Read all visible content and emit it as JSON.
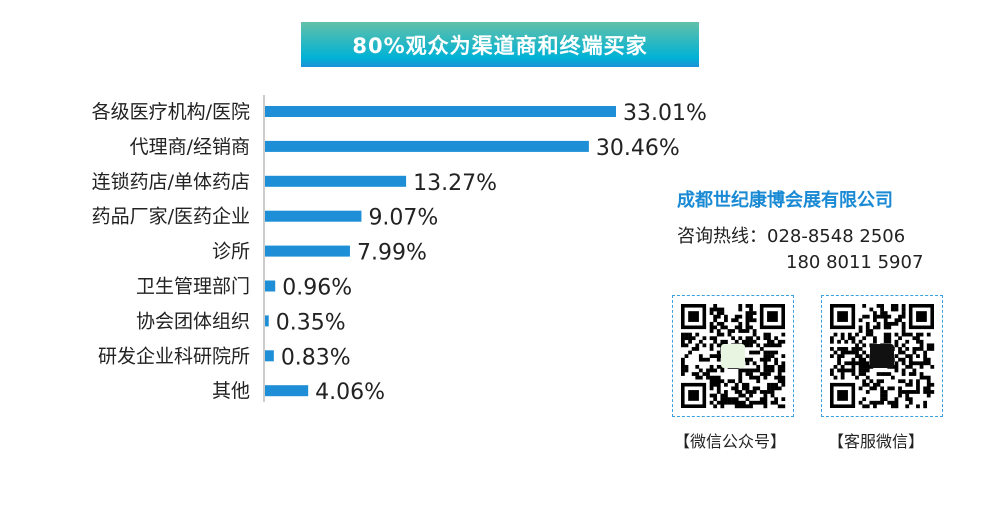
{
  "header": {
    "title": "80%观众为渠道商和终端买家"
  },
  "chart_data": {
    "type": "bar",
    "orientation": "horizontal",
    "categories": [
      "各级医疗机构/医院",
      "代理商/经销商",
      "连锁药店/单体药店",
      "药品厂家/医药企业",
      "诊所",
      "卫生管理部门",
      "协会团体组织",
      "研发企业科研院所",
      "其他"
    ],
    "values": [
      33.01,
      30.46,
      13.27,
      9.07,
      7.99,
      0.96,
      0.35,
      0.83,
      4.06
    ],
    "data_labels": [
      "33.01%",
      "30.46%",
      "13.27%",
      "9.07%",
      "7.99%",
      "0.96%",
      "0.35%",
      "0.83%",
      "4.06%"
    ],
    "bar_color": "#1e8fd6",
    "grid": false
  },
  "contact": {
    "company": "成都世纪康博会展有限公司",
    "hotline_label": "咨询热线：",
    "phone1": "028-8548 2506",
    "phone2": "180 8011 5907",
    "qr_public_caption": "【微信公众号】",
    "qr_service_caption": "【客服微信】",
    "accent_color": "#1a8ad4"
  }
}
